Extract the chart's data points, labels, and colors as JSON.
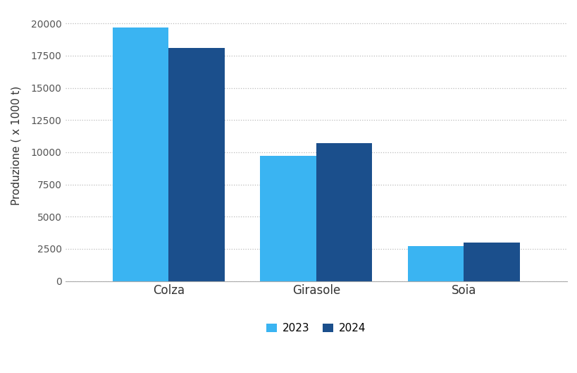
{
  "categories": [
    "Colza",
    "Girasole",
    "Soia"
  ],
  "values_2023": [
    19700,
    9700,
    2700
  ],
  "values_2024": [
    18100,
    10700,
    3000
  ],
  "color_2023": "#3ab4f2",
  "color_2024": "#1b4f8c",
  "ylabel": "Produzione ( x 1000 t)",
  "ylim": [
    0,
    21000
  ],
  "yticks": [
    0,
    2500,
    5000,
    7500,
    10000,
    12500,
    15000,
    17500,
    20000
  ],
  "legend_labels": [
    "2023",
    "2024"
  ],
  "bar_width": 0.38,
  "background_color": "#ffffff",
  "grid_color": "#bbbbbb",
  "title": ""
}
